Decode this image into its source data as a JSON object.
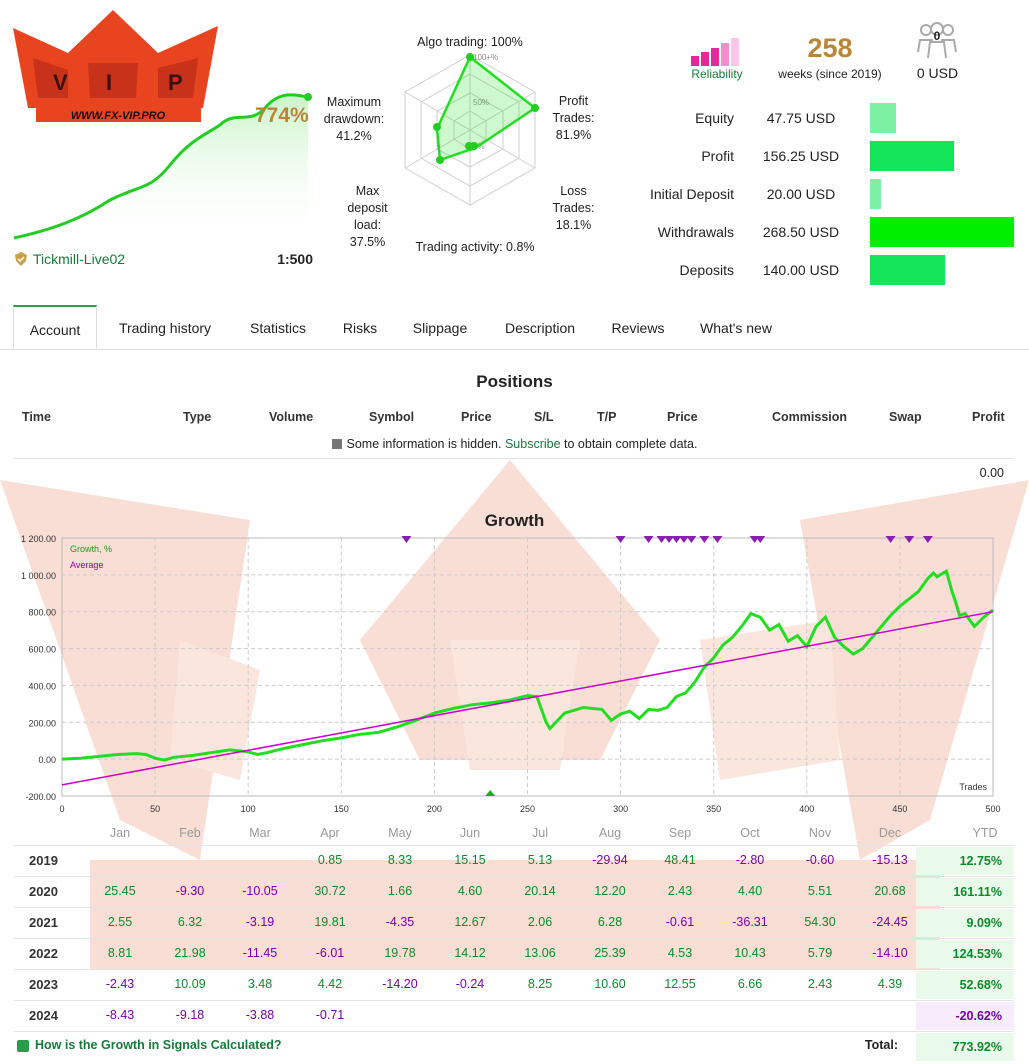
{
  "logo": {
    "text": "WWW.FX-VIP.PRO",
    "letters": "VIP"
  },
  "summary": {
    "growth": "774%",
    "account_name": "Tickmill-Live02",
    "leverage": "1:500"
  },
  "radar": {
    "algo": "Algo trading: 100%",
    "drawdown_l1": "Maximum",
    "drawdown_l2": "drawdown:",
    "drawdown_val": "41.2%",
    "profit_l1": "Profit",
    "profit_l2": "Trades:",
    "profit_val": "81.9%",
    "loss_l1": "Loss",
    "loss_l2": "Trades:",
    "loss_val": "18.1%",
    "load_l1": "Max",
    "load_l2": "deposit",
    "load_l3": "load:",
    "load_val": "37.5%",
    "activity": "Trading activity: 0.8%",
    "ring_100": "100+%",
    "ring_50": "50%",
    "ring_0": "0%"
  },
  "header_stats": {
    "reliability_label": "Reliability",
    "weeks_value": "258",
    "weeks_label": "weeks (since 2019)",
    "subscribers_count": "0",
    "subscribers_value": "0 USD"
  },
  "finance": [
    {
      "label": "Equity",
      "value": "47.75 USD",
      "fraction": 0.18,
      "color": "#7ef0a4"
    },
    {
      "label": "Profit",
      "value": "156.25 USD",
      "fraction": 0.58,
      "color": "#14e55a"
    },
    {
      "label": "Initial Deposit",
      "value": "20.00 USD",
      "fraction": 0.075,
      "color": "#7ef0a4"
    },
    {
      "label": "Withdrawals",
      "value": "268.50 USD",
      "fraction": 1.0,
      "color": "#00ee00"
    },
    {
      "label": "Deposits",
      "value": "140.00 USD",
      "fraction": 0.52,
      "color": "#14e55a"
    }
  ],
  "tabs": [
    "Account",
    "Trading history",
    "Statistics",
    "Risks",
    "Slippage",
    "Description",
    "Reviews",
    "What's new"
  ],
  "positions": {
    "title": "Positions",
    "columns": [
      "Time",
      "Type",
      "Volume",
      "Symbol",
      "Price",
      "S/L",
      "T/P",
      "Price",
      "Commission",
      "Swap",
      "Profit"
    ],
    "notice_pre": "Some information is hidden.",
    "notice_link": "Subscribe",
    "notice_post": "to obtain complete data.",
    "total": "0.00"
  },
  "growth": {
    "title": "Growth",
    "legend_growth": "Growth, %",
    "legend_average": "Average",
    "x_axis_label": "Trades"
  },
  "chart_data": {
    "type": "line",
    "title": "Growth",
    "xlabel": "Trades",
    "ylabel": "",
    "xlim": [
      0,
      500
    ],
    "ylim": [
      -200,
      1200
    ],
    "x_ticks": [
      "0",
      "50",
      "100",
      "150",
      "200",
      "250",
      "300",
      "350",
      "400",
      "450",
      "500"
    ],
    "y_ticks": [
      "1 200.00",
      "1 000.00",
      "800.00",
      "600.00",
      "400.00",
      "200.00",
      "0.00",
      "-200.00"
    ],
    "series": [
      {
        "name": "Growth, %",
        "color": "#22dd22",
        "points": [
          [
            0,
            0
          ],
          [
            10,
            5
          ],
          [
            20,
            15
          ],
          [
            30,
            25
          ],
          [
            40,
            30
          ],
          [
            45,
            25
          ],
          [
            50,
            5
          ],
          [
            55,
            -5
          ],
          [
            60,
            10
          ],
          [
            70,
            20
          ],
          [
            80,
            35
          ],
          [
            90,
            50
          ],
          [
            100,
            40
          ],
          [
            105,
            25
          ],
          [
            110,
            35
          ],
          [
            120,
            60
          ],
          [
            130,
            80
          ],
          [
            140,
            100
          ],
          [
            150,
            115
          ],
          [
            160,
            135
          ],
          [
            170,
            145
          ],
          [
            180,
            175
          ],
          [
            190,
            210
          ],
          [
            200,
            250
          ],
          [
            210,
            275
          ],
          [
            220,
            295
          ],
          [
            230,
            305
          ],
          [
            240,
            320
          ],
          [
            250,
            345
          ],
          [
            255,
            340
          ],
          [
            260,
            200
          ],
          [
            262,
            165
          ],
          [
            270,
            250
          ],
          [
            280,
            280
          ],
          [
            290,
            270
          ],
          [
            295,
            210
          ],
          [
            300,
            245
          ],
          [
            305,
            260
          ],
          [
            310,
            220
          ],
          [
            315,
            270
          ],
          [
            320,
            265
          ],
          [
            325,
            280
          ],
          [
            330,
            340
          ],
          [
            335,
            360
          ],
          [
            340,
            420
          ],
          [
            345,
            500
          ],
          [
            350,
            550
          ],
          [
            355,
            620
          ],
          [
            360,
            660
          ],
          [
            365,
            720
          ],
          [
            370,
            790
          ],
          [
            375,
            770
          ],
          [
            380,
            700
          ],
          [
            385,
            730
          ],
          [
            390,
            640
          ],
          [
            395,
            670
          ],
          [
            400,
            610
          ],
          [
            405,
            720
          ],
          [
            410,
            770
          ],
          [
            415,
            660
          ],
          [
            420,
            610
          ],
          [
            425,
            570
          ],
          [
            430,
            600
          ],
          [
            435,
            660
          ],
          [
            440,
            720
          ],
          [
            445,
            780
          ],
          [
            450,
            830
          ],
          [
            455,
            870
          ],
          [
            460,
            910
          ],
          [
            465,
            980
          ],
          [
            468,
            1010
          ],
          [
            470,
            990
          ],
          [
            475,
            1020
          ],
          [
            478,
            910
          ],
          [
            480,
            850
          ],
          [
            482,
            780
          ],
          [
            485,
            790
          ],
          [
            490,
            720
          ],
          [
            495,
            770
          ],
          [
            500,
            810
          ]
        ]
      },
      {
        "name": "Average",
        "color": "#cc00cc",
        "points": [
          [
            0,
            -140
          ],
          [
            500,
            800
          ]
        ]
      }
    ]
  },
  "calendar": {
    "months": [
      "Jan",
      "Feb",
      "Mar",
      "Apr",
      "May",
      "Jun",
      "Jul",
      "Aug",
      "Sep",
      "Oct",
      "Nov",
      "Dec",
      "YTD"
    ],
    "rows": [
      {
        "year": "2019",
        "values": [
          "",
          "",
          "",
          "0.85",
          "8.33",
          "15.15",
          "5.13",
          "-29.94",
          "48.41",
          "-2.80",
          "-0.60",
          "-15.13"
        ],
        "ytd": "12.75%"
      },
      {
        "year": "2020",
        "values": [
          "25.45",
          "-9.30",
          "-10.05",
          "30.72",
          "1.66",
          "4.60",
          "20.14",
          "12.20",
          "2.43",
          "4.40",
          "5.51",
          "20.68"
        ],
        "ytd": "161.11%"
      },
      {
        "year": "2021",
        "values": [
          "2.55",
          "6.32",
          "-3.19",
          "19.81",
          "-4.35",
          "12.67",
          "2.06",
          "6.28",
          "-0.61",
          "-36.31",
          "54.30",
          "-24.45"
        ],
        "ytd": "9.09%"
      },
      {
        "year": "2022",
        "values": [
          "8.81",
          "21.98",
          "-11.45",
          "-6.01",
          "19.78",
          "14.12",
          "13.06",
          "25.39",
          "4.53",
          "10.43",
          "5.79",
          "-14.10"
        ],
        "ytd": "124.53%"
      },
      {
        "year": "2023",
        "values": [
          "-2.43",
          "10.09",
          "3.48",
          "4.42",
          "-14.20",
          "-0.24",
          "8.25",
          "10.60",
          "12.55",
          "6.66",
          "2.43",
          "4.39"
        ],
        "ytd": "52.68%"
      },
      {
        "year": "2024",
        "values": [
          "-8.43",
          "-9.18",
          "-3.88",
          "-0.71",
          "",
          "",
          "",
          "",
          "",
          "",
          "",
          ""
        ],
        "ytd": "-20.62%"
      }
    ],
    "footer_link": "How is the Growth in Signals Calculated?",
    "total_label": "Total:",
    "total_value": "773.92%"
  }
}
